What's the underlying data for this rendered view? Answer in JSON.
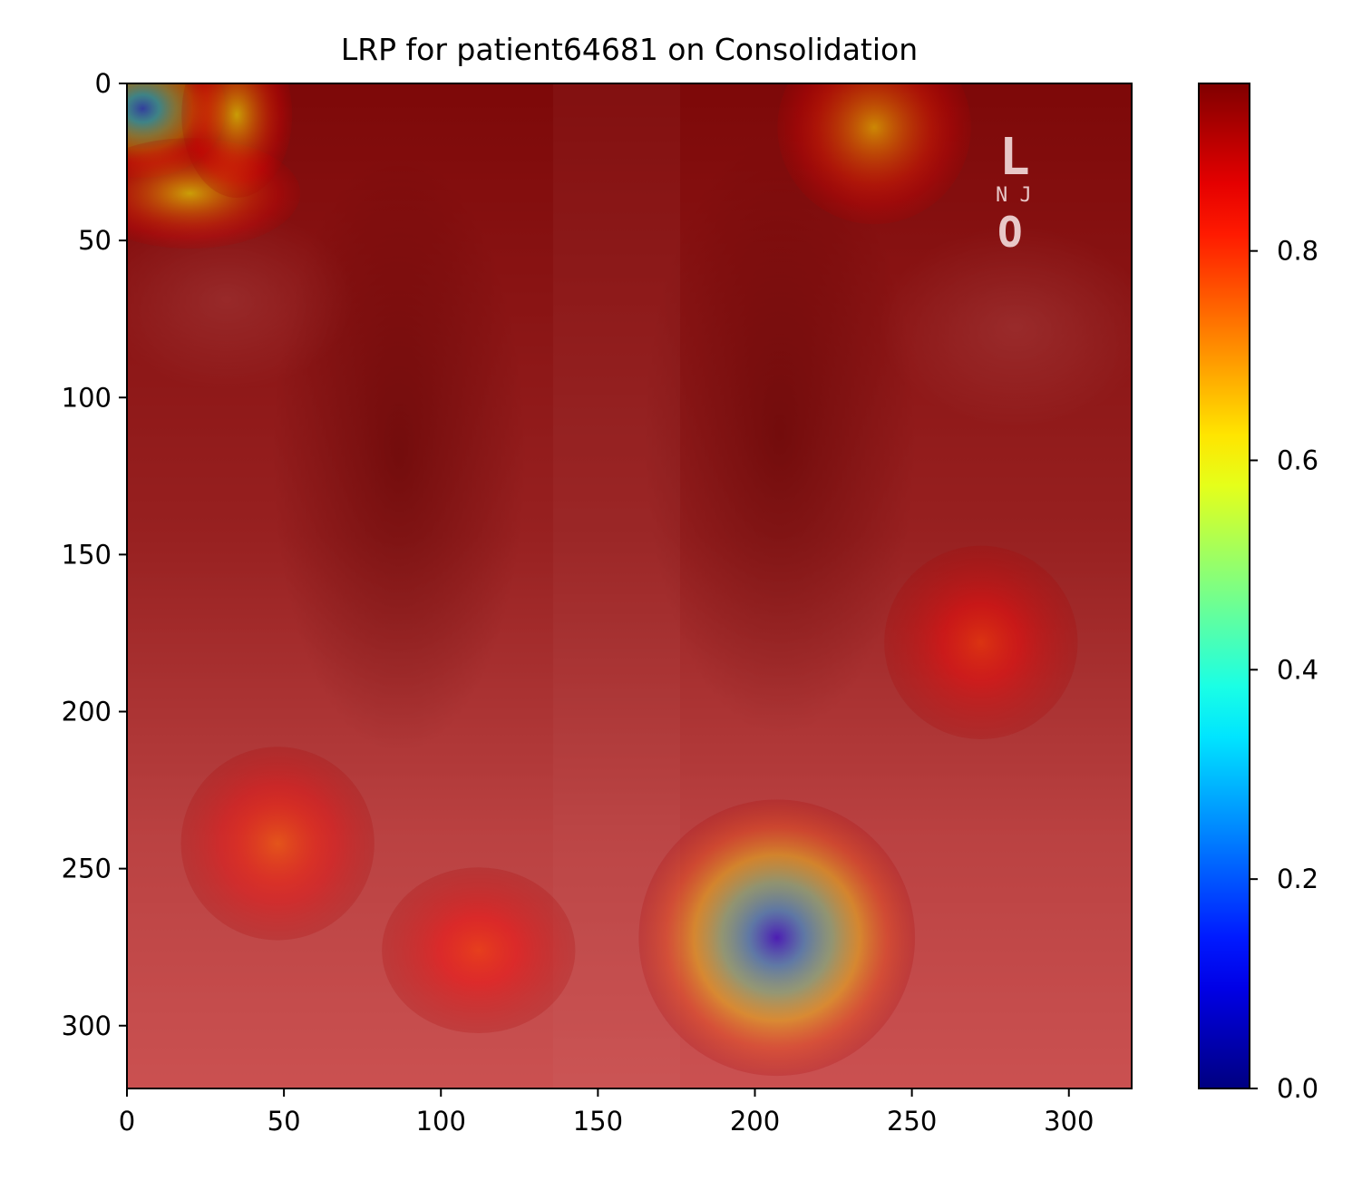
{
  "chart_data": {
    "type": "heatmap",
    "title": "LRP for patient64681 on Consolidation",
    "xlabel": "",
    "ylabel": "",
    "x_range": [
      0,
      320
    ],
    "y_range": [
      320,
      0
    ],
    "x_ticks": [
      0,
      50,
      100,
      150,
      200,
      250,
      300
    ],
    "y_ticks": [
      0,
      50,
      100,
      150,
      200,
      250,
      300
    ],
    "x_tick_labels": [
      "0",
      "50",
      "100",
      "150",
      "200",
      "250",
      "300"
    ],
    "y_tick_labels": [
      "0",
      "50",
      "100",
      "150",
      "200",
      "250",
      "300"
    ],
    "colormap": "jet",
    "colorbar": {
      "range": [
        0,
        0.96
      ],
      "ticks": [
        0.0,
        0.2,
        0.4,
        0.6,
        0.8
      ],
      "tick_labels": [
        "0.0",
        "0.2",
        "0.4",
        "0.6",
        "0.8"
      ]
    },
    "background": "chest x-ray",
    "overlay_alpha": 0.45,
    "baseline_relevance": 0.96,
    "relevance_blobs": [
      {
        "x": 5,
        "y": 8,
        "sx": 12,
        "sy": 10,
        "value": 0.22
      },
      {
        "x": 20,
        "y": 35,
        "sx": 16,
        "sy": 8,
        "value": 0.62
      },
      {
        "x": 35,
        "y": 10,
        "sx": 8,
        "sy": 12,
        "value": 0.62
      },
      {
        "x": 238,
        "y": 14,
        "sx": 14,
        "sy": 14,
        "value": 0.66
      },
      {
        "x": 207,
        "y": 272,
        "sx": 20,
        "sy": 20,
        "value": 0.12
      },
      {
        "x": 112,
        "y": 276,
        "sx": 14,
        "sy": 12,
        "value": 0.82
      },
      {
        "x": 48,
        "y": 242,
        "sx": 14,
        "sy": 14,
        "value": 0.78
      },
      {
        "x": 272,
        "y": 178,
        "sx": 14,
        "sy": 14,
        "value": 0.82
      }
    ],
    "image_annotations": [
      "L",
      "N J",
      "O"
    ]
  },
  "colors": {
    "axis": "#000000",
    "background": "#ffffff"
  }
}
